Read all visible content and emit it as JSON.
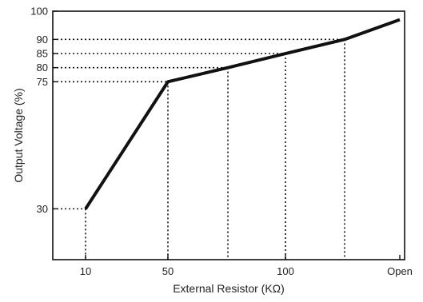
{
  "chart_data": {
    "type": "line",
    "title": "",
    "xlabel": "External Resistor (KΩ)",
    "ylabel": "Output Voltage (%)",
    "x_categories": [
      "10",
      "50",
      "",
      "100",
      "",
      "Open"
    ],
    "y_ticks": [
      30,
      75,
      80,
      85,
      90,
      100
    ],
    "ylim": [
      12,
      100
    ],
    "grid": false,
    "series": [
      {
        "values": [
          {
            "x": "10",
            "y": 30
          },
          {
            "x": "50",
            "y": 75
          },
          {
            "x": "",
            "y": 80
          },
          {
            "x": "100",
            "y": 85
          },
          {
            "x": "",
            "y": 90
          },
          {
            "x": "Open",
            "y": 97
          }
        ]
      }
    ],
    "reference_lines": "dotted lines from each data point to both axes",
    "colors": {
      "line": "#111111",
      "axis": "#111111",
      "reference": "#111111"
    }
  }
}
